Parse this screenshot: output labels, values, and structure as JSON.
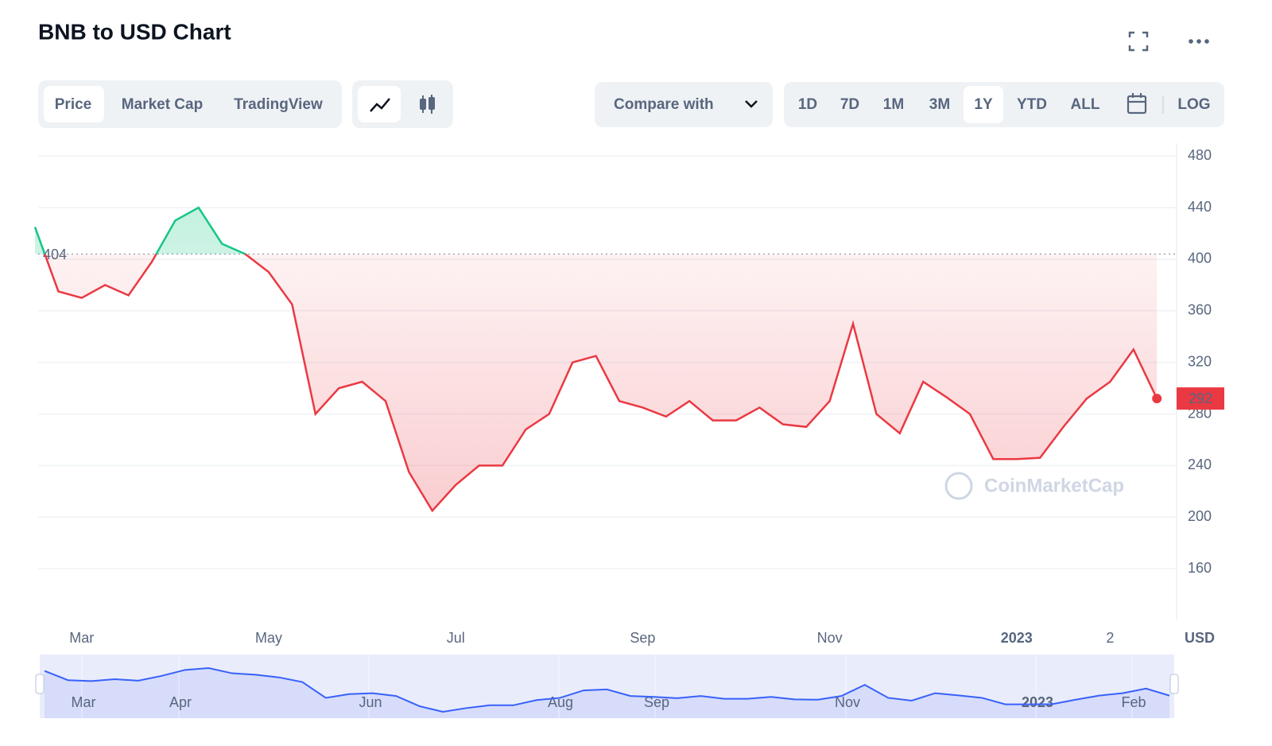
{
  "header": {
    "title": "BNB to USD Chart"
  },
  "tabs": [
    "Price",
    "Market Cap",
    "TradingView"
  ],
  "compare": "Compare with",
  "ranges": [
    "1D",
    "7D",
    "1M",
    "3M",
    "1Y",
    "YTD",
    "ALL"
  ],
  "log": "LOG",
  "watermark": "CoinMarketCap",
  "chart_data": {
    "type": "line",
    "categories": [
      null,
      null,
      "Mar",
      null,
      null,
      null,
      null,
      null,
      null,
      null,
      "May",
      null,
      null,
      null,
      null,
      null,
      null,
      null,
      "Jul",
      null,
      null,
      null,
      null,
      null,
      null,
      null,
      "Sep",
      null,
      null,
      null,
      null,
      null,
      null,
      null,
      "Nov",
      null,
      null,
      null,
      null,
      null,
      null,
      null,
      "2023",
      null,
      null,
      null,
      "2",
      null,
      null
    ],
    "values": [
      425,
      375,
      370,
      380,
      372,
      398,
      430,
      440,
      412,
      404,
      390,
      365,
      280,
      300,
      305,
      290,
      235,
      205,
      225,
      240,
      240,
      268,
      280,
      320,
      325,
      290,
      285,
      278,
      290,
      275,
      275,
      285,
      272,
      270,
      290,
      350,
      280,
      265,
      305,
      293,
      280,
      245,
      245,
      246,
      270,
      292,
      305,
      330,
      292
    ],
    "baseline": 404,
    "up_color": "#16c784",
    "down_color": "#ea3943",
    "ylim": [
      120,
      490
    ],
    "yticks": [
      160,
      200,
      240,
      280,
      320,
      360,
      400,
      440,
      480
    ],
    "y_label": "USD",
    "grid": true,
    "navigator": {
      "color": "#3861fb",
      "labels": [
        "Mar",
        "Apr",
        "Jun",
        "Aug",
        "Sep",
        "Nov",
        "2023",
        "Feb"
      ]
    }
  }
}
